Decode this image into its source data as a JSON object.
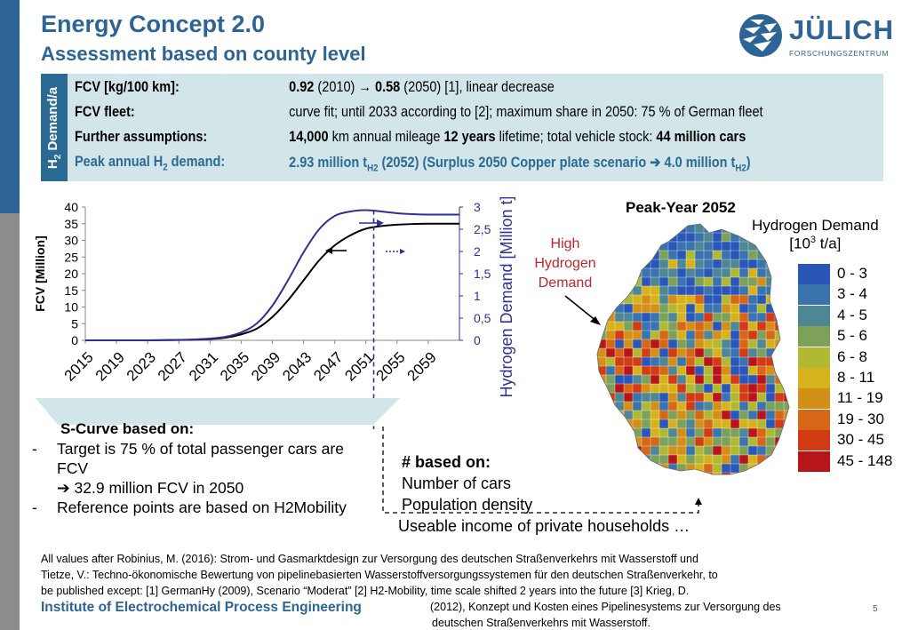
{
  "header": {
    "title": "Energy Concept 2.0",
    "subtitle": "Assessment based on county level"
  },
  "logo": {
    "word": "JÜLICH",
    "sub": "FORSCHUNGSZENTRUM",
    "color": "#2d6496"
  },
  "info_box": {
    "side_label_main": "H",
    "side_label_sub": "2",
    "side_label_rest": " Demand/a",
    "rows": [
      {
        "key": "FCV [kg/100 km]:",
        "v1b": "0.92",
        "v2": " (2010) → ",
        "v3b": "0.58",
        "v4": " (2050) [1], linear decrease"
      },
      {
        "key": "FCV fleet:",
        "value": "curve fit; until 2033 according to [2]; maximum share in 2050: 75 % of German fleet"
      },
      {
        "key": "Further assumptions:",
        "v1b": "14,000",
        "v2": " km annual mileage ",
        "v3b": "12 years",
        "v4": " lifetime; total vehicle stock: ",
        "v5b": "44 million cars"
      },
      {
        "key_a": "Peak annual H",
        "key_sub": "2",
        "key_b": " demand:",
        "v_a": "2.93 million t",
        "v_sub1": "H2",
        "v_b": " (2052)   (Surplus 2050 Copper plate  scenario ",
        "v_arrow": "➔",
        "v_c": " 4.0 million t",
        "v_sub2": "H2",
        "v_d": ")"
      }
    ]
  },
  "chart_data": {
    "type": "line",
    "x": [
      2015,
      2017,
      2019,
      2021,
      2023,
      2025,
      2027,
      2029,
      2031,
      2033,
      2035,
      2037,
      2039,
      2041,
      2043,
      2045,
      2047,
      2049,
      2051,
      2053,
      2055,
      2057,
      2059,
      2061,
      2063
    ],
    "xticks": [
      "2015",
      "2019",
      "2023",
      "2027",
      "2031",
      "2035",
      "2039",
      "2043",
      "2047",
      "2051",
      "2055",
      "2059"
    ],
    "series": [
      {
        "axis": "left",
        "color": "#000000",
        "values": [
          0,
          0,
          0,
          0,
          0,
          0.05,
          0.1,
          0.2,
          0.4,
          0.8,
          1.8,
          3.5,
          7,
          12,
          18,
          24,
          28.5,
          31.5,
          33.5,
          34.3,
          34.7,
          34.9,
          35,
          35,
          35
        ]
      },
      {
        "axis": "right",
        "color": "#2e3192",
        "values": [
          0,
          0,
          0,
          0,
          0,
          0.005,
          0.01,
          0.02,
          0.04,
          0.08,
          0.18,
          0.38,
          0.78,
          1.35,
          1.98,
          2.5,
          2.8,
          2.9,
          2.93,
          2.9,
          2.86,
          2.84,
          2.83,
          2.83,
          2.83
        ]
      }
    ],
    "ylabel": "FCV [Million]",
    "ylim": [
      0,
      40
    ],
    "yticks": [
      "0",
      "5",
      "10",
      "15",
      "20",
      "25",
      "30",
      "35",
      "40"
    ],
    "y2label": "Hydrogen Demand [Million t]",
    "y2lim": [
      0,
      3
    ],
    "y2ticks": [
      "0",
      "0,5",
      "1",
      "1,5",
      "2",
      "2,5",
      "3"
    ],
    "peak_year_marker": 2052,
    "grid": false
  },
  "map": {
    "title": "Peak-Year 2052",
    "legend_title_a": "Hydrogen Demand",
    "legend_title_b": "[10",
    "legend_title_sup": "3",
    "legend_title_c": " t/a]",
    "annotation": "High Hydrogen Demand",
    "legend": [
      {
        "label": "0 - 3",
        "color": "#2a56b8"
      },
      {
        "label": "3 - 4",
        "color": "#3a73ad"
      },
      {
        "label": "4 - 5",
        "color": "#4e8793"
      },
      {
        "label": "5 - 6",
        "color": "#7ea15a"
      },
      {
        "label": "6 - 8",
        "color": "#b0b932"
      },
      {
        "label": "8 - 11",
        "color": "#d6b31c"
      },
      {
        "label": "11 - 19",
        "color": "#d39018"
      },
      {
        "label": "19 - 30",
        "color": "#d56716"
      },
      {
        "label": "30 - 45",
        "color": "#d23c14"
      },
      {
        "label": "45 - 148",
        "color": "#b8151b"
      }
    ]
  },
  "scurve": {
    "heading": "S-Curve based on:",
    "bullets": [
      {
        "dash": "-",
        "text": "Target is 75 % of total passenger cars are FCV"
      },
      {
        "dash": "",
        "text": "➔ 32.9 million FCV in 2050"
      },
      {
        "dash": "-",
        "text": "Reference points are based on H2Mobility"
      }
    ]
  },
  "based_on": {
    "heading": "# based on:",
    "lines": [
      "Number of cars",
      "Population density"
    ],
    "useable": "Useable income of private households …"
  },
  "footnote": {
    "line1": "All values after Robinius, M. (2016): Strom- und Gasmarktdesign zur Versorgung des deutschen Straßenverkehrs mit Wasserstoff und",
    "line2": "Tietze, V.: Techno-ökonomische Bewertung von pipelinebasierten Wasserstoffversorgungssystemen für den deutschen Straßenverkehr, to",
    "line3": "be published except: [1] GermanHy (2009), Scenario “Moderat”  [2] H2-Mobility, time scale shifted 2 years into the future [3] Krieg, D.",
    "line4": "(2012), Konzept und Kosten eines Pipelinesystems zur Versorgung des",
    "line5": "deutschen Straßenverkehrs mit Wasserstoff."
  },
  "footer": {
    "institute": "Institute of Electrochemical Process Engineering",
    "page": "5"
  }
}
